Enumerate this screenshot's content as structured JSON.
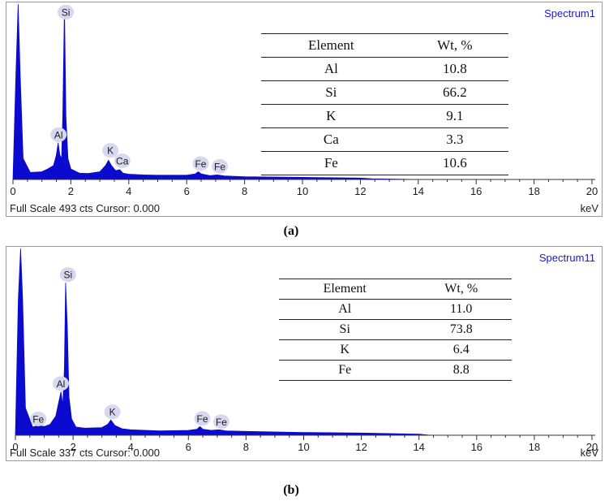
{
  "chart_data": [
    {
      "type": "line",
      "panel_caption": "(a)",
      "spectrum_name": "Spectrum1",
      "footer": "Full Scale 493 cts Cursor: 0.000",
      "xunit": "keV",
      "xlim": [
        0,
        20
      ],
      "xticks": [
        "0",
        "2",
        "4",
        "6",
        "8",
        "10",
        "12",
        "14",
        "16",
        "18",
        "20"
      ],
      "ylim": [
        0,
        493
      ],
      "series": [
        {
          "x": [
            0.0,
            0.1,
            0.18,
            0.25,
            0.35,
            0.6,
            1.0,
            1.2,
            1.4,
            1.5,
            1.56,
            1.62,
            1.68,
            1.72,
            1.78,
            1.83,
            1.9,
            2.0,
            2.3,
            2.6,
            3.0,
            3.2,
            3.3,
            3.4,
            3.55,
            3.69,
            3.8,
            4.0,
            4.5,
            5.0,
            6.0,
            6.3,
            6.4,
            6.5,
            6.8,
            7.06,
            7.3,
            8.0,
            10.0,
            12.0,
            12.4,
            14.0,
            20.0
          ],
          "y": [
            0,
            300,
            520,
            300,
            60,
            20,
            22,
            30,
            40,
            70,
            105,
            70,
            60,
            180,
            500,
            180,
            60,
            30,
            18,
            17,
            22,
            40,
            55,
            40,
            25,
            28,
            18,
            15,
            13,
            12,
            12,
            16,
            22,
            16,
            11,
            13,
            10,
            8,
            6,
            4,
            2,
            0,
            0
          ]
        }
      ],
      "peak_labels": [
        {
          "label": "Si",
          "x": 1.74,
          "y": 500
        },
        {
          "label": "Al",
          "x": 1.49,
          "y": 105
        },
        {
          "label": "K",
          "x": 3.31,
          "y": 60
        },
        {
          "label": "Ca",
          "x": 3.69,
          "y": 30
        },
        {
          "label": "Fe",
          "x": 6.4,
          "y": 22
        },
        {
          "label": "Fe",
          "x": 7.06,
          "y": 14
        }
      ],
      "table": {
        "headers": [
          "Element",
          "Wt, %"
        ],
        "rows": [
          [
            "Al",
            "10.8"
          ],
          [
            "Si",
            "66.2"
          ],
          [
            "K",
            "9.1"
          ],
          [
            "Ca",
            "3.3"
          ],
          [
            "Fe",
            "10.6"
          ]
        ]
      }
    },
    {
      "type": "line",
      "panel_caption": "(b)",
      "spectrum_name": "Spectrum11",
      "footer": "Full Scale 337 cts Cursor: 0.000",
      "xunit": "keV",
      "xlim": [
        0,
        20
      ],
      "xticks": [
        "0",
        "2",
        "4",
        "6",
        "8",
        "10",
        "12",
        "14",
        "16",
        "18",
        "20"
      ],
      "ylim": [
        0,
        337
      ],
      "series": [
        {
          "x": [
            0.0,
            0.1,
            0.18,
            0.25,
            0.35,
            0.6,
            0.8,
            1.0,
            1.2,
            1.4,
            1.5,
            1.58,
            1.64,
            1.7,
            1.74,
            1.8,
            1.86,
            1.95,
            2.1,
            2.4,
            3.0,
            3.2,
            3.31,
            3.45,
            3.7,
            4.0,
            5.0,
            6.0,
            6.3,
            6.4,
            6.5,
            6.8,
            7.06,
            7.3,
            8.0,
            10.0,
            12.0,
            14.0,
            14.4,
            20.0
          ],
          "y": [
            0,
            250,
            420,
            250,
            50,
            15,
            18,
            16,
            20,
            35,
            60,
            80,
            55,
            120,
            280,
            200,
            70,
            30,
            15,
            13,
            14,
            20,
            28,
            18,
            12,
            10,
            8,
            9,
            11,
            16,
            11,
            9,
            10,
            8,
            7,
            5,
            4,
            2,
            0,
            0
          ]
        }
      ],
      "peak_labels": [
        {
          "label": "Si",
          "x": 1.74,
          "y": 280
        },
        {
          "label": "Al",
          "x": 1.49,
          "y": 80
        },
        {
          "label": "K",
          "x": 3.31,
          "y": 28
        },
        {
          "label": "Fe",
          "x": 0.71,
          "y": 15
        },
        {
          "label": "Fe",
          "x": 6.4,
          "y": 16
        },
        {
          "label": "Fe",
          "x": 7.06,
          "y": 10
        }
      ],
      "table": {
        "headers": [
          "Element",
          "Wt, %"
        ],
        "rows": [
          [
            "Al",
            "11.0"
          ],
          [
            "Si",
            "73.8"
          ],
          [
            "K",
            "6.4"
          ],
          [
            "Fe",
            "8.8"
          ]
        ]
      }
    }
  ],
  "colors": {
    "spectrum_fill": "#0b0bd0",
    "spectrum_name": "#1a1acb",
    "peak_label_bg": "#d7d7ef"
  }
}
